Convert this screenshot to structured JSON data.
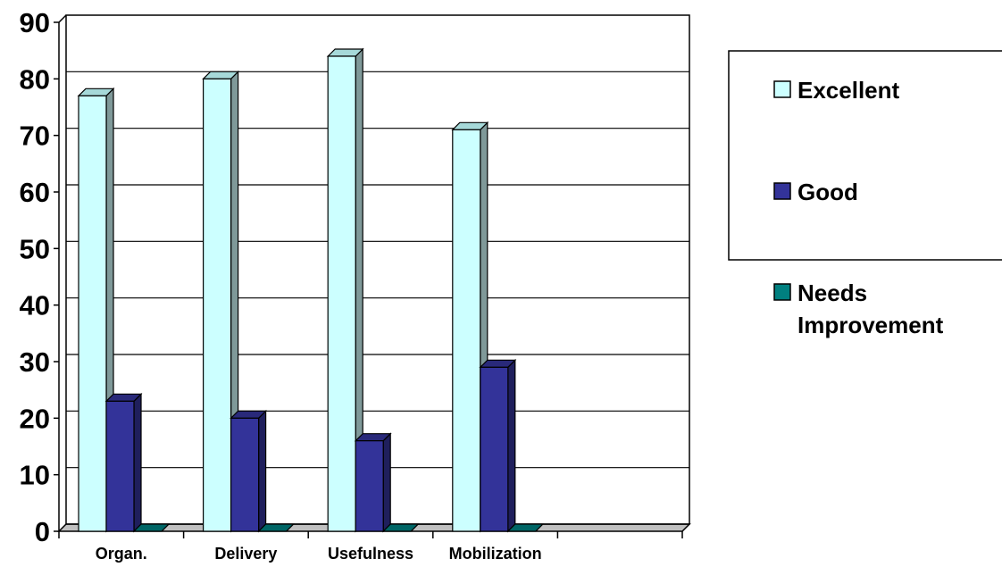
{
  "chart_data": {
    "type": "bar",
    "categories": [
      "Organ.",
      "Delivery",
      "Usefulness",
      "Mobilization"
    ],
    "series": [
      {
        "name": "Excellent",
        "values": [
          77,
          80,
          84,
          71
        ],
        "color": "#ccffff"
      },
      {
        "name": "Good",
        "values": [
          23,
          20,
          16,
          29
        ],
        "color": "#333399"
      },
      {
        "name": "Needs Improvement",
        "values": [
          0,
          0,
          0,
          0
        ],
        "color": "#008080"
      }
    ],
    "legend_labels": {
      "excellent": "Excellent",
      "good": "Good",
      "needs_improvement_line1": "Needs",
      "needs_improvement_line2": "Improvement"
    },
    "ylim": [
      0,
      90
    ],
    "yticks": [
      "0",
      "10",
      "20",
      "30",
      "40",
      "50",
      "60",
      "70",
      "80",
      "90"
    ],
    "title": "",
    "xlabel": "",
    "ylabel": "",
    "grid": true,
    "three_d": true,
    "legend_position": "right"
  }
}
